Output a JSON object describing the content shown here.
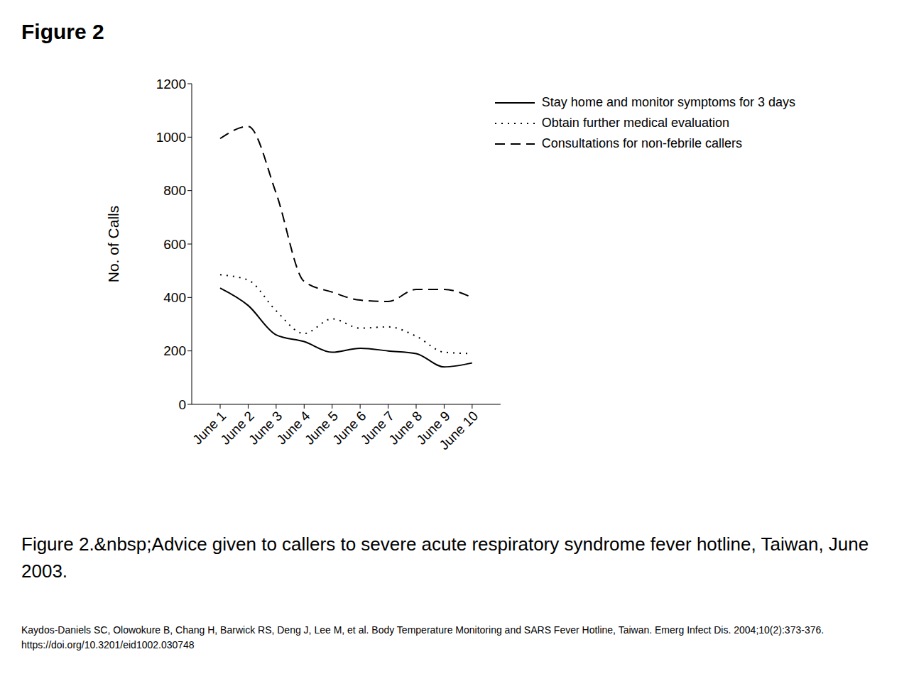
{
  "figure_label": "Figure 2",
  "caption": "Figure 2.&nbsp;Advice given to callers to severe acute respiratory syndrome fever hotline, Taiwan, June 2003.",
  "citation": [
    "Kaydos-Daniels SC, Olowokure B, Chang H, Barwick RS, Deng J, Lee M, et al. Body Temperature Monitoring and SARS Fever Hotline, Taiwan. Emerg Infect Dis. 2004;10(2):373-376.",
    "https://doi.org/10.3201/eid1002.030748"
  ],
  "chart_data": {
    "type": "line",
    "y_label": "No. of Calls",
    "categories": [
      "June 1",
      "June 2",
      "June 3",
      "June 4",
      "June 5",
      "June 6",
      "June 7",
      "June 8",
      "June 9",
      "June 10"
    ],
    "series": [
      {
        "name": "Stay home and monitor symptoms for 3 days",
        "color": "#000000",
        "line_style": "solid",
        "values": [
          435,
          370,
          260,
          235,
          195,
          210,
          200,
          190,
          140,
          155
        ]
      },
      {
        "name": "Obtain further medical evaluation",
        "color": "#000000",
        "line_style": "dotted",
        "values": [
          485,
          465,
          350,
          265,
          320,
          285,
          290,
          255,
          195,
          190
        ]
      },
      {
        "name": "Consultations for non-febrile callers",
        "color": "#000000",
        "line_style": "dashed",
        "values": [
          995,
          1040,
          790,
          460,
          420,
          390,
          385,
          430,
          430,
          400
        ]
      }
    ],
    "ylim": [
      0,
      1200
    ],
    "yticks": [
      0,
      200,
      400,
      600,
      800,
      1000,
      1200
    ],
    "grid": false,
    "legend": "top-right"
  }
}
